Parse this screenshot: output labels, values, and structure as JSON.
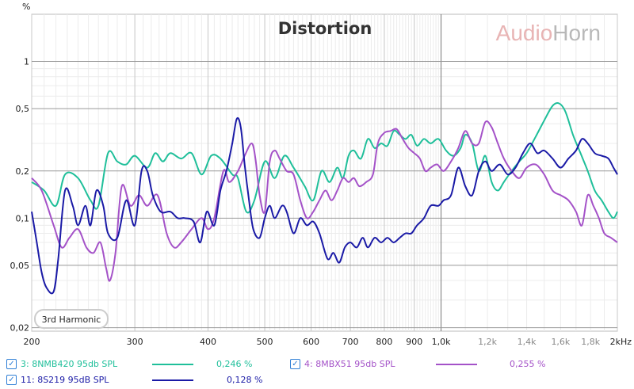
{
  "chart_data": {
    "type": "line",
    "title": "Distortion",
    "watermark": {
      "part1": "Audio",
      "part2": "Horn",
      "color1": "#e8b4b4",
      "color2": "#b8b8b8"
    },
    "ylabel": "%",
    "xlabel": "",
    "x_scale": "log",
    "y_scale": "log",
    "xlim": [
      200,
      2000
    ],
    "ylim": [
      0.019,
      2.0
    ],
    "grid": true,
    "x_major_ticks": [
      {
        "v": 200,
        "label": "200"
      },
      {
        "v": 300,
        "label": "300"
      },
      {
        "v": 400,
        "label": "400"
      },
      {
        "v": 500,
        "label": "500"
      },
      {
        "v": 600,
        "label": "600"
      },
      {
        "v": 700,
        "label": "700"
      },
      {
        "v": 800,
        "label": "800"
      },
      {
        "v": 900,
        "label": "900"
      },
      {
        "v": 1000,
        "label": "1,0k"
      },
      {
        "v": 2000,
        "label": "2kHz"
      }
    ],
    "x_minor_ticks": [
      {
        "v": 1200,
        "label": "1,2k"
      },
      {
        "v": 1400,
        "label": "1,4k"
      },
      {
        "v": 1600,
        "label": "1,6k"
      },
      {
        "v": 1800,
        "label": "1,8k"
      }
    ],
    "y_ticks": [
      {
        "v": 1,
        "label": "1"
      },
      {
        "v": 0.5,
        "label": "0,5"
      },
      {
        "v": 0.2,
        "label": "0,2"
      },
      {
        "v": 0.1,
        "label": "0,1"
      },
      {
        "v": 0.05,
        "label": "0,05"
      },
      {
        "v": 0.02,
        "label": "0,02"
      }
    ],
    "annotation": "3rd Harmonic",
    "series": [
      {
        "name": "3: 8NMB420 95db SPL",
        "value": "0,246 %",
        "color": "#1fbf9a",
        "points": [
          [
            200,
            0.17
          ],
          [
            210,
            0.15
          ],
          [
            220,
            0.12
          ],
          [
            228,
            0.19
          ],
          [
            240,
            0.18
          ],
          [
            252,
            0.13
          ],
          [
            260,
            0.12
          ],
          [
            270,
            0.26
          ],
          [
            280,
            0.23
          ],
          [
            290,
            0.22
          ],
          [
            300,
            0.25
          ],
          [
            315,
            0.21
          ],
          [
            325,
            0.26
          ],
          [
            335,
            0.23
          ],
          [
            345,
            0.26
          ],
          [
            360,
            0.24
          ],
          [
            375,
            0.26
          ],
          [
            390,
            0.19
          ],
          [
            405,
            0.25
          ],
          [
            420,
            0.24
          ],
          [
            440,
            0.19
          ],
          [
            450,
            0.18
          ],
          [
            465,
            0.11
          ],
          [
            480,
            0.13
          ],
          [
            500,
            0.23
          ],
          [
            520,
            0.18
          ],
          [
            540,
            0.25
          ],
          [
            560,
            0.21
          ],
          [
            585,
            0.16
          ],
          [
            605,
            0.13
          ],
          [
            625,
            0.2
          ],
          [
            645,
            0.17
          ],
          [
            665,
            0.21
          ],
          [
            680,
            0.18
          ],
          [
            695,
            0.25
          ],
          [
            710,
            0.27
          ],
          [
            730,
            0.24
          ],
          [
            750,
            0.32
          ],
          [
            770,
            0.28
          ],
          [
            790,
            0.3
          ],
          [
            810,
            0.29
          ],
          [
            830,
            0.36
          ],
          [
            850,
            0.34
          ],
          [
            870,
            0.32
          ],
          [
            890,
            0.34
          ],
          [
            910,
            0.29
          ],
          [
            935,
            0.32
          ],
          [
            960,
            0.3
          ],
          [
            990,
            0.32
          ],
          [
            1020,
            0.27
          ],
          [
            1050,
            0.25
          ],
          [
            1080,
            0.28
          ],
          [
            1100,
            0.34
          ],
          [
            1130,
            0.3
          ],
          [
            1160,
            0.2
          ],
          [
            1190,
            0.25
          ],
          [
            1220,
            0.17
          ],
          [
            1250,
            0.15
          ],
          [
            1280,
            0.17
          ],
          [
            1320,
            0.2
          ],
          [
            1360,
            0.23
          ],
          [
            1400,
            0.26
          ],
          [
            1450,
            0.33
          ],
          [
            1500,
            0.42
          ],
          [
            1550,
            0.52
          ],
          [
            1590,
            0.54
          ],
          [
            1630,
            0.48
          ],
          [
            1680,
            0.34
          ],
          [
            1730,
            0.26
          ],
          [
            1780,
            0.2
          ],
          [
            1830,
            0.15
          ],
          [
            1880,
            0.13
          ],
          [
            1930,
            0.11
          ],
          [
            1970,
            0.1
          ],
          [
            2000,
            0.11
          ]
        ]
      },
      {
        "name": "4: 8MBX51 95db SPL",
        "value": "0,255 %",
        "color": "#a452c8",
        "points": [
          [
            200,
            0.18
          ],
          [
            208,
            0.15
          ],
          [
            218,
            0.09
          ],
          [
            225,
            0.065
          ],
          [
            232,
            0.075
          ],
          [
            240,
            0.085
          ],
          [
            248,
            0.065
          ],
          [
            255,
            0.06
          ],
          [
            262,
            0.07
          ],
          [
            268,
            0.048
          ],
          [
            272,
            0.04
          ],
          [
            278,
            0.06
          ],
          [
            285,
            0.16
          ],
          [
            295,
            0.12
          ],
          [
            305,
            0.14
          ],
          [
            315,
            0.12
          ],
          [
            328,
            0.14
          ],
          [
            340,
            0.08
          ],
          [
            350,
            0.065
          ],
          [
            360,
            0.07
          ],
          [
            375,
            0.085
          ],
          [
            390,
            0.1
          ],
          [
            400,
            0.085
          ],
          [
            410,
            0.1
          ],
          [
            425,
            0.2
          ],
          [
            435,
            0.17
          ],
          [
            450,
            0.2
          ],
          [
            462,
            0.25
          ],
          [
            475,
            0.3
          ],
          [
            482,
            0.24
          ],
          [
            490,
            0.14
          ],
          [
            500,
            0.11
          ],
          [
            510,
            0.23
          ],
          [
            520,
            0.27
          ],
          [
            530,
            0.24
          ],
          [
            545,
            0.2
          ],
          [
            560,
            0.19
          ],
          [
            575,
            0.13
          ],
          [
            590,
            0.1
          ],
          [
            605,
            0.11
          ],
          [
            620,
            0.13
          ],
          [
            635,
            0.15
          ],
          [
            650,
            0.13
          ],
          [
            665,
            0.15
          ],
          [
            680,
            0.18
          ],
          [
            695,
            0.17
          ],
          [
            710,
            0.18
          ],
          [
            725,
            0.16
          ],
          [
            745,
            0.17
          ],
          [
            765,
            0.19
          ],
          [
            780,
            0.3
          ],
          [
            800,
            0.35
          ],
          [
            820,
            0.36
          ],
          [
            840,
            0.37
          ],
          [
            860,
            0.32
          ],
          [
            880,
            0.28
          ],
          [
            900,
            0.26
          ],
          [
            920,
            0.24
          ],
          [
            940,
            0.2
          ],
          [
            960,
            0.21
          ],
          [
            985,
            0.22
          ],
          [
            1010,
            0.2
          ],
          [
            1040,
            0.23
          ],
          [
            1070,
            0.28
          ],
          [
            1100,
            0.36
          ],
          [
            1130,
            0.3
          ],
          [
            1160,
            0.3
          ],
          [
            1190,
            0.41
          ],
          [
            1220,
            0.38
          ],
          [
            1250,
            0.3
          ],
          [
            1280,
            0.24
          ],
          [
            1320,
            0.2
          ],
          [
            1360,
            0.18
          ],
          [
            1400,
            0.21
          ],
          [
            1450,
            0.22
          ],
          [
            1500,
            0.19
          ],
          [
            1550,
            0.15
          ],
          [
            1600,
            0.14
          ],
          [
            1650,
            0.13
          ],
          [
            1700,
            0.11
          ],
          [
            1740,
            0.09
          ],
          [
            1780,
            0.14
          ],
          [
            1820,
            0.12
          ],
          [
            1860,
            0.1
          ],
          [
            1900,
            0.08
          ],
          [
            1950,
            0.075
          ],
          [
            2000,
            0.07
          ]
        ]
      },
      {
        "name": "11: 8S219 95dB SPL",
        "value": "0,128 %",
        "color": "#1a1aa6",
        "points": [
          [
            200,
            0.11
          ],
          [
            204,
            0.07
          ],
          [
            208,
            0.045
          ],
          [
            212,
            0.036
          ],
          [
            218,
            0.034
          ],
          [
            222,
            0.055
          ],
          [
            228,
            0.15
          ],
          [
            235,
            0.12
          ],
          [
            240,
            0.09
          ],
          [
            247,
            0.12
          ],
          [
            252,
            0.09
          ],
          [
            258,
            0.15
          ],
          [
            265,
            0.12
          ],
          [
            270,
            0.08
          ],
          [
            280,
            0.075
          ],
          [
            290,
            0.13
          ],
          [
            300,
            0.09
          ],
          [
            308,
            0.2
          ],
          [
            315,
            0.2
          ],
          [
            322,
            0.14
          ],
          [
            332,
            0.11
          ],
          [
            345,
            0.11
          ],
          [
            355,
            0.1
          ],
          [
            365,
            0.1
          ],
          [
            378,
            0.095
          ],
          [
            388,
            0.07
          ],
          [
            398,
            0.11
          ],
          [
            410,
            0.09
          ],
          [
            420,
            0.15
          ],
          [
            430,
            0.2
          ],
          [
            440,
            0.3
          ],
          [
            448,
            0.43
          ],
          [
            455,
            0.38
          ],
          [
            462,
            0.22
          ],
          [
            470,
            0.13
          ],
          [
            478,
            0.085
          ],
          [
            490,
            0.075
          ],
          [
            500,
            0.1
          ],
          [
            510,
            0.12
          ],
          [
            520,
            0.1
          ],
          [
            535,
            0.12
          ],
          [
            545,
            0.11
          ],
          [
            560,
            0.08
          ],
          [
            575,
            0.1
          ],
          [
            590,
            0.09
          ],
          [
            605,
            0.095
          ],
          [
            620,
            0.08
          ],
          [
            640,
            0.055
          ],
          [
            655,
            0.06
          ],
          [
            670,
            0.052
          ],
          [
            685,
            0.065
          ],
          [
            700,
            0.07
          ],
          [
            718,
            0.065
          ],
          [
            735,
            0.075
          ],
          [
            750,
            0.065
          ],
          [
            770,
            0.075
          ],
          [
            790,
            0.07
          ],
          [
            810,
            0.075
          ],
          [
            830,
            0.07
          ],
          [
            850,
            0.075
          ],
          [
            870,
            0.08
          ],
          [
            890,
            0.08
          ],
          [
            910,
            0.09
          ],
          [
            935,
            0.1
          ],
          [
            960,
            0.12
          ],
          [
            990,
            0.12
          ],
          [
            1010,
            0.13
          ],
          [
            1040,
            0.14
          ],
          [
            1070,
            0.21
          ],
          [
            1100,
            0.16
          ],
          [
            1130,
            0.14
          ],
          [
            1160,
            0.2
          ],
          [
            1190,
            0.23
          ],
          [
            1220,
            0.2
          ],
          [
            1260,
            0.22
          ],
          [
            1300,
            0.19
          ],
          [
            1340,
            0.21
          ],
          [
            1380,
            0.26
          ],
          [
            1420,
            0.3
          ],
          [
            1460,
            0.26
          ],
          [
            1500,
            0.27
          ],
          [
            1550,
            0.24
          ],
          [
            1600,
            0.21
          ],
          [
            1650,
            0.24
          ],
          [
            1700,
            0.27
          ],
          [
            1740,
            0.32
          ],
          [
            1780,
            0.3
          ],
          [
            1830,
            0.26
          ],
          [
            1880,
            0.25
          ],
          [
            1930,
            0.24
          ],
          [
            1970,
            0.21
          ],
          [
            2000,
            0.19
          ]
        ]
      }
    ]
  }
}
